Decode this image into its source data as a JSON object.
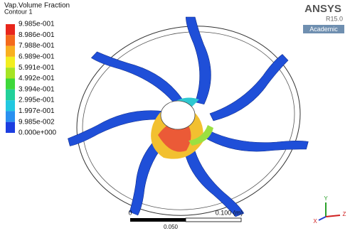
{
  "legend": {
    "title": "Vap.Volume Fraction",
    "subtitle": "Contour 1",
    "labels": [
      "9.985e-001",
      "8.986e-001",
      "7.988e-001",
      "6.989e-001",
      "5.991e-001",
      "4.992e-001",
      "3.994e-001",
      "2.995e-001",
      "1.997e-001",
      "9.985e-002",
      "0.000e+000"
    ]
  },
  "logo": {
    "name": "ANSYS",
    "release": "R15.0",
    "edition": "Academic"
  },
  "scale_bar": {
    "start": "0",
    "end": "0.100 (m)",
    "mid": "0.050"
  },
  "triad": {
    "y": "Y",
    "x": "X",
    "z": "Z"
  }
}
